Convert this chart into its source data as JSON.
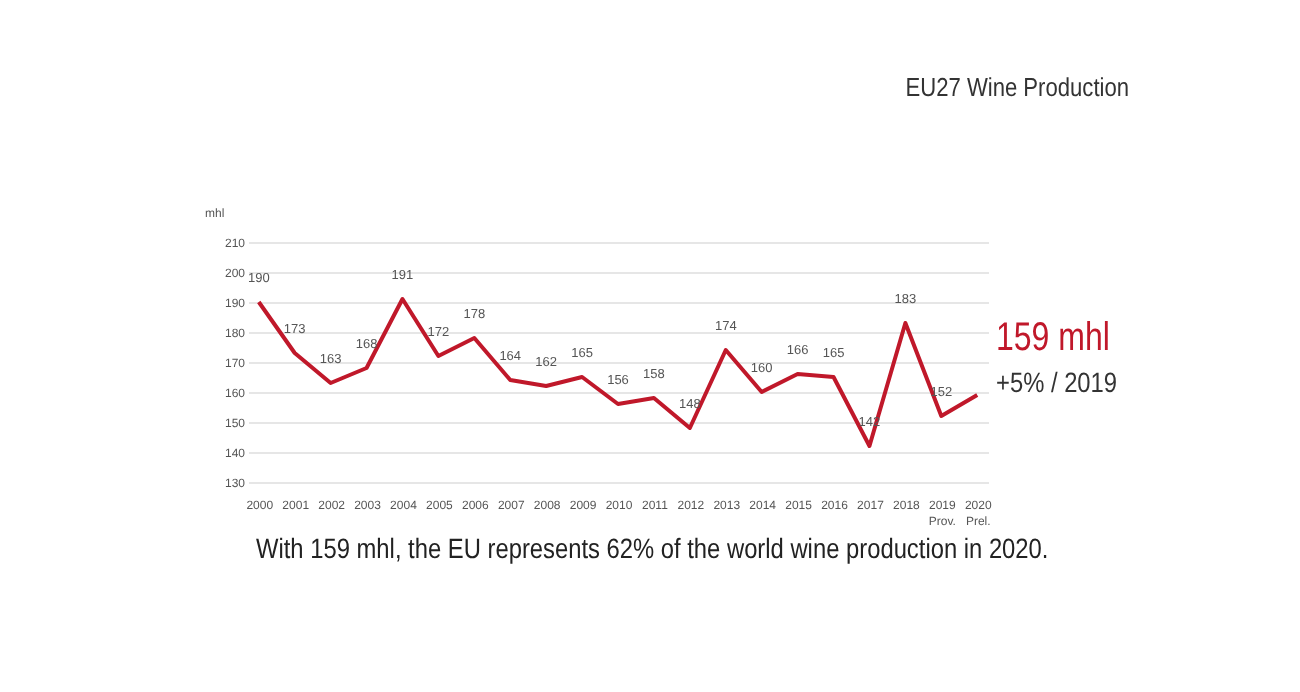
{
  "chart_data": {
    "type": "line",
    "title": "EU27 Wine Production",
    "ylabel": "mhl",
    "categories": [
      "2000",
      "2001",
      "2002",
      "2003",
      "2004",
      "2005",
      "2006",
      "2007",
      "2008",
      "2009",
      "2010",
      "2011",
      "2012",
      "2013",
      "2014",
      "2015",
      "2016",
      "2017",
      "2018",
      "2019 Prov.",
      "2020 Prel."
    ],
    "series": [
      {
        "color": "#c0182a",
        "values": [
          190,
          173,
          163,
          168,
          191,
          172,
          178,
          164,
          162,
          165,
          156,
          158,
          148,
          174,
          160,
          166,
          165,
          142,
          183,
          152,
          159
        ],
        "value_labels": [
          "190",
          "173",
          "163",
          "168",
          "191",
          "172",
          "178",
          "164",
          "162",
          "165",
          "156",
          "158",
          "148",
          "174",
          "160",
          "166",
          "165",
          "142",
          "183",
          "152",
          null
        ]
      }
    ],
    "ylim": [
      130,
      210
    ],
    "yticks": [
      130,
      140,
      150,
      160,
      170,
      180,
      190,
      200,
      210
    ],
    "grid": "y",
    "annotations": [
      "159 mhl",
      "+5% / 2019",
      "With 159 mhl, the EU represents 62% of the world wine production in 2020."
    ]
  }
}
